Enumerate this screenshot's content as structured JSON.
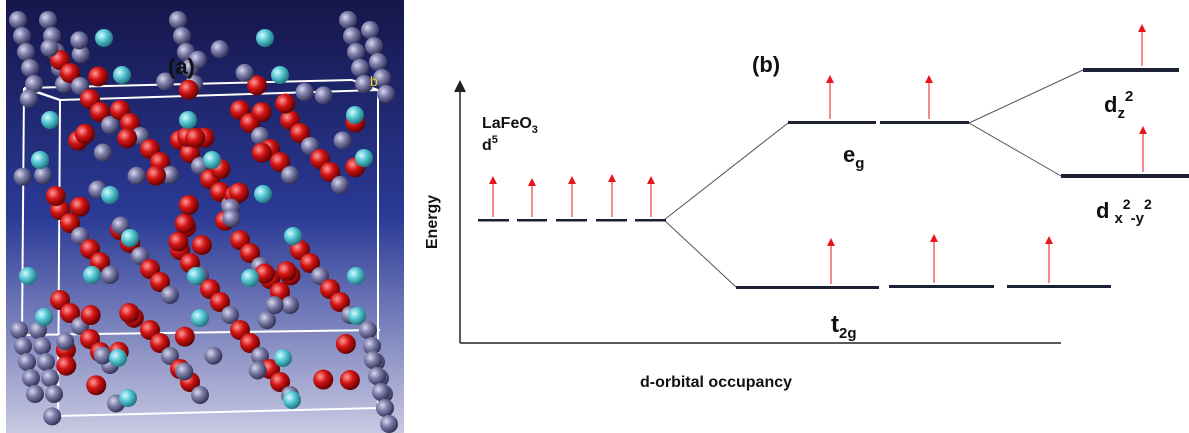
{
  "panel_a": {
    "label": "(a)",
    "axis_mark": "b",
    "colors": {
      "background_top": "#16164a",
      "background_mid": "#2a3a96",
      "background_bottom": "#c9c9e2",
      "fe_atom": "#7c7ca8",
      "o_atom": "#d41414",
      "la_atom": "#56c8d4",
      "cell_edges": "#ffffff"
    }
  },
  "panel_b": {
    "label": "(b)",
    "compound": "LaFeO",
    "compound_sub": "3",
    "d_count": "d",
    "d_count_sup": "5",
    "y_axis_label": "Energy",
    "x_axis_label": "d-orbital occupancy",
    "eg_main": "e",
    "eg_sub": "g",
    "t2g_main": "t",
    "t2g_sub": "2g",
    "dz2_main": "d",
    "dz2_sub": "z",
    "dz2_sup": "2",
    "dx2y2_main": "d",
    "dx2y2_sub_x": "x",
    "dx2y2_sup_1": "2",
    "dx2y2_sub_y": "-y",
    "dx2y2_sup_2": "2",
    "level_color": "#1c2233",
    "arrow_color": "#e8141c"
  }
}
